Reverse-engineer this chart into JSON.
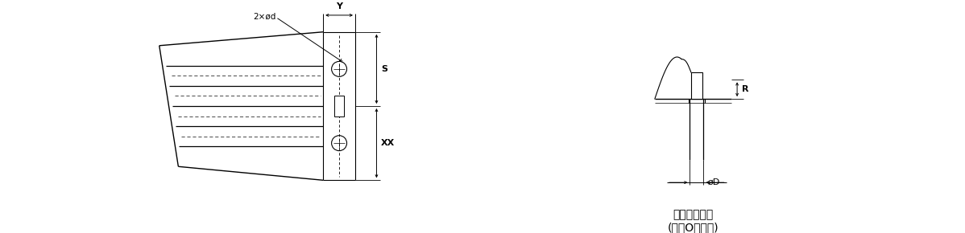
{
  "bg_color": "#ffffff",
  "line_color": "#000000",
  "fig_width": 11.98,
  "fig_height": 2.9,
  "dpi": 100,
  "label_2xod": "2×ød",
  "label_Y": "Y",
  "label_S": "S",
  "label_XX": "XX",
  "label_R": "R",
  "label_oD": "øD",
  "caption_line1": "底面側配管部",
  "caption_line2": "(適用Oリング)"
}
